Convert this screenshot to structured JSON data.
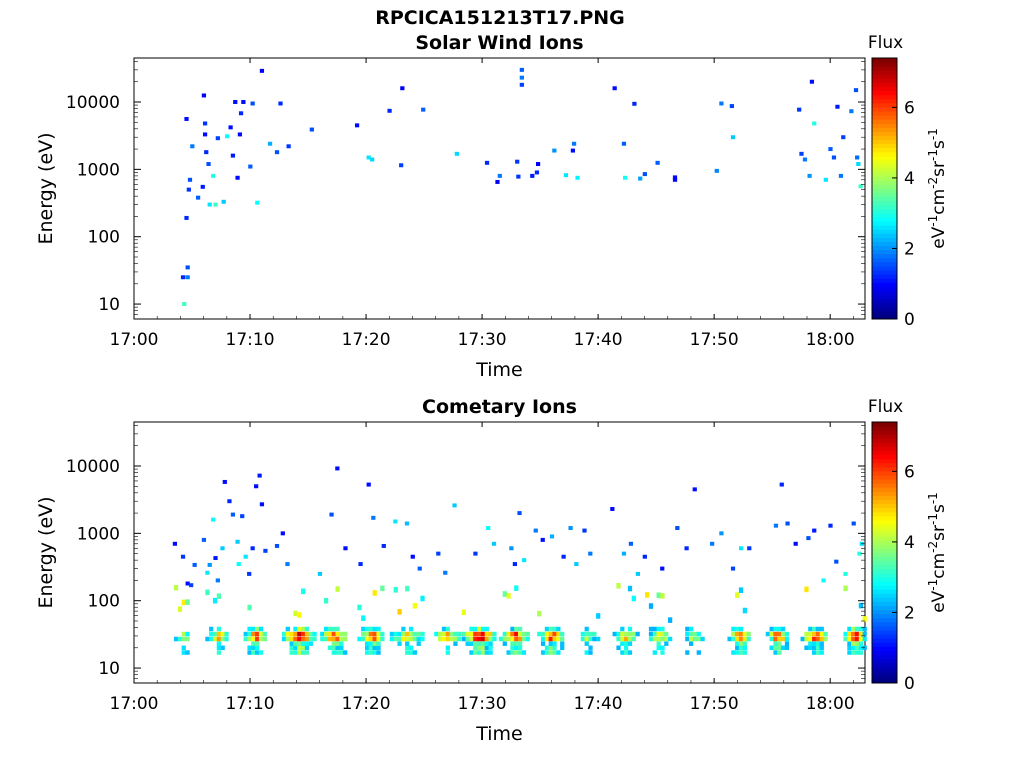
{
  "figure_title": "RPCICA151213T17.PNG",
  "colorbar": {
    "title": "Flux",
    "ticks": [
      "0",
      "2",
      "4",
      "6"
    ],
    "range": [
      0,
      7.4
    ],
    "colormap": "jet"
  },
  "chart_data": [
    {
      "type": "heatmap",
      "title": "Solar Wind Ions",
      "xlabel": "Time",
      "ylabel": "Energy (eV)",
      "yscale": "log",
      "x_ticks": [
        "17:00",
        "17:10",
        "17:20",
        "17:30",
        "17:40",
        "17:50",
        "18:00"
      ],
      "y_ticks": [
        "10",
        "100",
        "1000",
        "10000"
      ],
      "xlim_minutes_after_17_00": [
        0,
        63
      ],
      "ylim": [
        6,
        45000
      ],
      "points": [
        [
          4.2,
          25,
          1.2
        ],
        [
          4.6,
          35,
          1.5
        ],
        [
          4.6,
          25,
          1.8
        ],
        [
          4.3,
          10,
          3.2
        ],
        [
          4.5,
          190,
          1.2
        ],
        [
          4.7,
          500,
          1.3
        ],
        [
          4.8,
          700,
          1.5
        ],
        [
          4.5,
          5600,
          1.0
        ],
        [
          5.0,
          2200,
          1.8
        ],
        [
          5.5,
          380,
          1.6
        ],
        [
          5.9,
          550,
          1.1
        ],
        [
          6.0,
          12500,
          0.9
        ],
        [
          6.1,
          3300,
          1.0
        ],
        [
          6.1,
          4800,
          1.3
        ],
        [
          6.2,
          1800,
          1.2
        ],
        [
          6.4,
          1200,
          1.5
        ],
        [
          6.5,
          300,
          2.6
        ],
        [
          6.8,
          800,
          3.0
        ],
        [
          7.0,
          300,
          3.2
        ],
        [
          7.2,
          2900,
          1.4
        ],
        [
          7.7,
          330,
          2.4
        ],
        [
          8.0,
          3100,
          2.8
        ],
        [
          8.3,
          4200,
          1.0
        ],
        [
          8.5,
          1600,
          1.1
        ],
        [
          8.7,
          10000,
          1.0
        ],
        [
          8.9,
          750,
          1.0
        ],
        [
          9.1,
          3300,
          1.0
        ],
        [
          9.2,
          6800,
          1.2
        ],
        [
          9.4,
          10000,
          1.0
        ],
        [
          10.0,
          1100,
          1.6
        ],
        [
          10.2,
          9500,
          1.5
        ],
        [
          10.6,
          320,
          2.8
        ],
        [
          11.0,
          29000,
          0.9
        ],
        [
          11.7,
          2400,
          2.2
        ],
        [
          12.3,
          1800,
          1.5
        ],
        [
          12.6,
          9500,
          1.2
        ],
        [
          13.3,
          2200,
          1.3
        ],
        [
          15.3,
          3900,
          1.5
        ],
        [
          19.2,
          4500,
          1.0
        ],
        [
          20.2,
          1500,
          2.6
        ],
        [
          20.5,
          1400,
          2.5
        ],
        [
          22.0,
          7400,
          1.2
        ],
        [
          23.0,
          1150,
          1.4
        ],
        [
          23.1,
          16000,
          0.9
        ],
        [
          24.9,
          7700,
          1.6
        ],
        [
          27.8,
          1700,
          2.5
        ],
        [
          30.4,
          1250,
          1.2
        ],
        [
          31.3,
          650,
          0.9
        ],
        [
          31.5,
          800,
          1.8
        ],
        [
          33.0,
          1300,
          1.3
        ],
        [
          33.1,
          780,
          1.3
        ],
        [
          33.4,
          30000,
          1.6
        ],
        [
          33.4,
          23000,
          1.8
        ],
        [
          33.4,
          18000,
          1.4
        ],
        [
          34.3,
          800,
          1.1
        ],
        [
          34.7,
          900,
          1.2
        ],
        [
          34.8,
          1200,
          0.8
        ],
        [
          36.2,
          1900,
          2.0
        ],
        [
          37.2,
          820,
          2.6
        ],
        [
          37.8,
          1900,
          1.0
        ],
        [
          37.9,
          2400,
          1.8
        ],
        [
          38.2,
          750,
          2.7
        ],
        [
          41.4,
          16000,
          1.0
        ],
        [
          42.3,
          750,
          2.9
        ],
        [
          42.2,
          2400,
          1.6
        ],
        [
          43.1,
          9400,
          1.2
        ],
        [
          43.6,
          730,
          2.1
        ],
        [
          44.0,
          850,
          1.5
        ],
        [
          45.1,
          1250,
          1.6
        ],
        [
          46.6,
          700,
          0.9
        ],
        [
          46.6,
          760,
          1.0
        ],
        [
          50.2,
          950,
          1.9
        ],
        [
          50.6,
          9500,
          1.8
        ],
        [
          51.5,
          8700,
          1.4
        ],
        [
          51.6,
          3000,
          2.4
        ],
        [
          57.3,
          7700,
          1.3
        ],
        [
          57.5,
          1700,
          1.4
        ],
        [
          57.8,
          1400,
          1.8
        ],
        [
          58.2,
          800,
          2.0
        ],
        [
          58.4,
          20000,
          1.0
        ],
        [
          58.6,
          4800,
          3.0
        ],
        [
          59.6,
          700,
          2.6
        ],
        [
          60.0,
          2000,
          1.6
        ],
        [
          60.3,
          1500,
          1.5
        ],
        [
          60.6,
          8500,
          1.1
        ],
        [
          60.9,
          800,
          1.8
        ],
        [
          61.1,
          3000,
          1.4
        ],
        [
          61.8,
          7300,
          1.8
        ],
        [
          62.2,
          15000,
          1.5
        ],
        [
          62.3,
          1500,
          1.7
        ],
        [
          62.4,
          1200,
          2.5
        ],
        [
          62.6,
          560,
          3.2
        ]
      ]
    },
    {
      "type": "heatmap",
      "title": "Cometary Ions",
      "xlabel": "Time",
      "ylabel": "Energy (eV)",
      "yscale": "log",
      "x_ticks": [
        "17:00",
        "17:10",
        "17:20",
        "17:30",
        "17:40",
        "17:50",
        "18:00"
      ],
      "y_ticks": [
        "10",
        "100",
        "1000",
        "10000"
      ],
      "xlim_minutes_after_17_00": [
        0,
        63
      ],
      "ylim": [
        6,
        45000
      ],
      "band": {
        "segments": [
          [
            3.6,
            5.1,
            4
          ],
          [
            6.3,
            8.2,
            5
          ],
          [
            9.6,
            11.4,
            6
          ],
          [
            12.9,
            15.6,
            7
          ],
          [
            16.2,
            18.5,
            6
          ],
          [
            19.4,
            21.7,
            6
          ],
          [
            22.2,
            25.1,
            5
          ],
          [
            25.7,
            28.2,
            5
          ],
          [
            28.4,
            31.3,
            7
          ],
          [
            31.6,
            34.2,
            6
          ],
          [
            34.9,
            37.1,
            6
          ],
          [
            38.0,
            40.1,
            4
          ],
          [
            41.4,
            43.6,
            5
          ],
          [
            44.2,
            46.4,
            5
          ],
          [
            47.0,
            49.3,
            4
          ],
          [
            51.3,
            53.2,
            6
          ],
          [
            54.6,
            56.4,
            6
          ],
          [
            57.6,
            59.9,
            6
          ],
          [
            61.3,
            63.0,
            7
          ]
        ]
      },
      "points": [
        [
          3.5,
          700,
          1.0
        ],
        [
          4.2,
          450,
          1.3
        ],
        [
          4.6,
          180,
          1.0
        ],
        [
          4.9,
          170,
          1.4
        ],
        [
          5.2,
          340,
          1.6
        ],
        [
          6.0,
          800,
          1.6
        ],
        [
          6.3,
          260,
          2.6
        ],
        [
          6.5,
          340,
          2.0
        ],
        [
          6.8,
          1600,
          2.8
        ],
        [
          7.0,
          430,
          1.1
        ],
        [
          7.2,
          200,
          1.8
        ],
        [
          7.6,
          600,
          2.4
        ],
        [
          7.8,
          5800,
          1.0
        ],
        [
          8.2,
          3000,
          1.2
        ],
        [
          8.5,
          1900,
          1.6
        ],
        [
          8.9,
          750,
          2.4
        ],
        [
          9.0,
          350,
          2.8
        ],
        [
          9.3,
          1800,
          1.4
        ],
        [
          9.6,
          450,
          2.6
        ],
        [
          9.9,
          250,
          1.3
        ],
        [
          10.2,
          600,
          1.2
        ],
        [
          10.5,
          5000,
          1.0
        ],
        [
          10.8,
          7200,
          1.1
        ],
        [
          11.0,
          2700,
          1.0
        ],
        [
          11.3,
          550,
          1.4
        ],
        [
          12.3,
          650,
          1.5
        ],
        [
          12.8,
          1000,
          1.0
        ],
        [
          13.2,
          350,
          1.8
        ],
        [
          16.0,
          250,
          2.4
        ],
        [
          17.0,
          1900,
          1.5
        ],
        [
          17.5,
          9200,
          1.0
        ],
        [
          18.2,
          600,
          1.0
        ],
        [
          19.5,
          350,
          1.2
        ],
        [
          20.2,
          5300,
          1.0
        ],
        [
          20.6,
          1700,
          1.8
        ],
        [
          21.5,
          650,
          1.2
        ],
        [
          22.5,
          1500,
          2.6
        ],
        [
          23.5,
          1400,
          2.3
        ],
        [
          24.0,
          450,
          1.0
        ],
        [
          24.6,
          300,
          1.6
        ],
        [
          26.2,
          500,
          1.4
        ],
        [
          26.8,
          260,
          1.8
        ],
        [
          27.6,
          2600,
          2.4
        ],
        [
          29.4,
          500,
          1.3
        ],
        [
          30.5,
          1200,
          2.8
        ],
        [
          31.0,
          700,
          2.4
        ],
        [
          32.5,
          600,
          2.0
        ],
        [
          32.8,
          350,
          1.2
        ],
        [
          33.2,
          2000,
          1.5
        ],
        [
          33.6,
          400,
          2.6
        ],
        [
          34.6,
          1100,
          1.8
        ],
        [
          35.2,
          800,
          1.0
        ],
        [
          36.0,
          900,
          2.2
        ],
        [
          37.0,
          450,
          1.2
        ],
        [
          37.6,
          1200,
          2.0
        ],
        [
          38.1,
          350,
          2.4
        ],
        [
          38.8,
          1100,
          1.3
        ],
        [
          39.3,
          500,
          1.8
        ],
        [
          41.2,
          2300,
          1.0
        ],
        [
          42.2,
          500,
          2.2
        ],
        [
          42.8,
          700,
          1.6
        ],
        [
          43.4,
          250,
          2.4
        ],
        [
          44.0,
          450,
          1.2
        ],
        [
          45.5,
          300,
          1.0
        ],
        [
          46.8,
          1200,
          1.5
        ],
        [
          47.6,
          600,
          1.2
        ],
        [
          48.3,
          4500,
          1.0
        ],
        [
          49.8,
          700,
          1.8
        ],
        [
          50.6,
          1000,
          2.0
        ],
        [
          51.6,
          300,
          1.4
        ],
        [
          52.3,
          600,
          2.6
        ],
        [
          53.0,
          600,
          1.3
        ],
        [
          55.3,
          1300,
          1.8
        ],
        [
          55.8,
          5300,
          1.2
        ],
        [
          56.3,
          1400,
          1.5
        ],
        [
          57.0,
          700,
          1.0
        ],
        [
          58.1,
          850,
          1.5
        ],
        [
          58.6,
          1100,
          1.1
        ],
        [
          59.4,
          200,
          2.8
        ],
        [
          60.0,
          1300,
          1.2
        ],
        [
          60.5,
          380,
          1.5
        ],
        [
          61.3,
          250,
          3.0
        ],
        [
          62.0,
          1400,
          1.5
        ],
        [
          62.5,
          500,
          3.0
        ],
        [
          62.7,
          700,
          2.6
        ]
      ]
    }
  ]
}
